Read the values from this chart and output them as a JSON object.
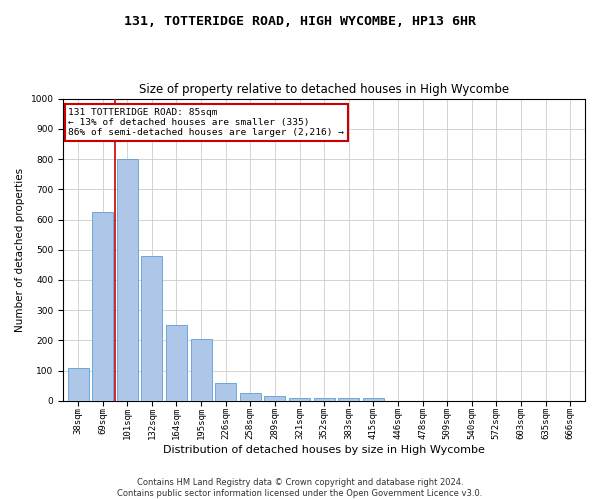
{
  "title": "131, TOTTERIDGE ROAD, HIGH WYCOMBE, HP13 6HR",
  "subtitle": "Size of property relative to detached houses in High Wycombe",
  "xlabel": "Distribution of detached houses by size in High Wycombe",
  "ylabel": "Number of detached properties",
  "footer_line1": "Contains HM Land Registry data © Crown copyright and database right 2024.",
  "footer_line2": "Contains public sector information licensed under the Open Government Licence v3.0.",
  "categories": [
    "38sqm",
    "69sqm",
    "101sqm",
    "132sqm",
    "164sqm",
    "195sqm",
    "226sqm",
    "258sqm",
    "289sqm",
    "321sqm",
    "352sqm",
    "383sqm",
    "415sqm",
    "446sqm",
    "478sqm",
    "509sqm",
    "540sqm",
    "572sqm",
    "603sqm",
    "635sqm",
    "666sqm"
  ],
  "values": [
    110,
    625,
    800,
    480,
    250,
    205,
    60,
    25,
    18,
    10,
    10,
    10,
    10,
    0,
    0,
    0,
    0,
    0,
    0,
    0,
    0
  ],
  "bar_color": "#aec6e8",
  "bar_edge_color": "#5a9fd4",
  "property_label": "131 TOTTERIDGE ROAD: 85sqm",
  "pct_smaller": 13,
  "count_smaller": 335,
  "pct_larger_semi": 86,
  "count_larger_semi": 2216,
  "vline_position": 1.5,
  "annotation_box_color": "#ffffff",
  "annotation_box_edge": "#cc0000",
  "vline_color": "#cc0000",
  "ylim": [
    0,
    1000
  ],
  "yticks": [
    0,
    100,
    200,
    300,
    400,
    500,
    600,
    700,
    800,
    900,
    1000
  ],
  "grid_color": "#cccccc",
  "bg_color": "#ffffff",
  "title_fontsize": 9.5,
  "subtitle_fontsize": 8.5,
  "xlabel_fontsize": 8,
  "ylabel_fontsize": 7.5,
  "tick_fontsize": 6.5,
  "annotation_fontsize": 6.8,
  "footer_fontsize": 6.0
}
